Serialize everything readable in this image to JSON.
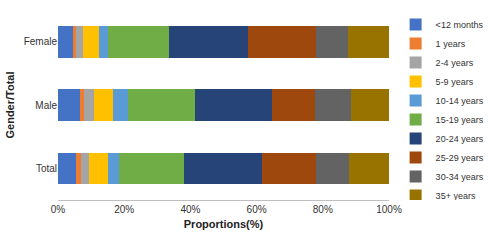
{
  "chart_data": {
    "type": "bar",
    "orientation": "horizontal",
    "stacked": true,
    "x_label": "Proportions(%)",
    "y_label": "Gender/Total",
    "categories": [
      "Total",
      "Male",
      "Female"
    ],
    "series": [
      {
        "name": "<12 months",
        "color": "#4472C4",
        "values": [
          5.5,
          6.5,
          4.5
        ]
      },
      {
        "name": "1 years",
        "color": "#ED7D31",
        "values": [
          1.5,
          1.5,
          1
        ]
      },
      {
        "name": "2-4 years",
        "color": "#A5A5A5",
        "values": [
          2.5,
          3,
          2
        ]
      },
      {
        "name": "5-9 years",
        "color": "#FFC000",
        "values": [
          5.5,
          5.5,
          5
        ]
      },
      {
        "name": "10-14 years",
        "color": "#5B9BD5",
        "values": [
          3.5,
          4.5,
          2.5
        ]
      },
      {
        "name": "15-19 years",
        "color": "#70AD47",
        "values": [
          19.5,
          20.5,
          18.5
        ]
      },
      {
        "name": "20-24 years",
        "color": "#264478",
        "values": [
          23.5,
          23,
          24
        ]
      },
      {
        "name": "25-29 years",
        "color": "#9E480E",
        "values": [
          16.5,
          13,
          20.5
        ]
      },
      {
        "name": "30-34 years",
        "color": "#636363",
        "values": [
          10,
          11,
          9.5
        ]
      },
      {
        "name": "35+ years",
        "color": "#997300",
        "values": [
          12,
          11.5,
          12.5
        ]
      }
    ],
    "xlim": [
      0,
      100
    ],
    "xticks": [
      {
        "value": 0,
        "label": "0%"
      },
      {
        "value": 20,
        "label": "20%"
      },
      {
        "value": 40,
        "label": "40%"
      },
      {
        "value": 60,
        "label": "60%"
      },
      {
        "value": 80,
        "label": "80%"
      },
      {
        "value": 100,
        "label": "100%"
      }
    ],
    "grid": false,
    "legend": "right"
  }
}
